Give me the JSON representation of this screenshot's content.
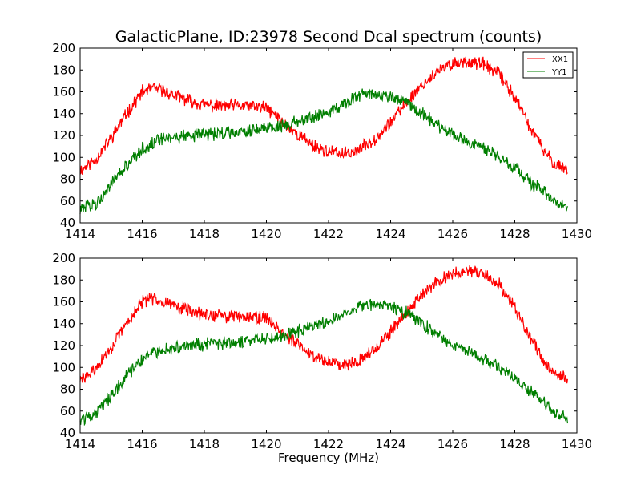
{
  "chart_data": [
    {
      "type": "line",
      "title": "GalacticPlane, ID:23978 Second Dcal spectrum (counts)",
      "xlabel": "",
      "ylabel": "",
      "xlim": [
        1414,
        1430
      ],
      "ylim": [
        40,
        200
      ],
      "xticks": [
        1414,
        1416,
        1418,
        1420,
        1422,
        1424,
        1426,
        1428,
        1430
      ],
      "yticks": [
        40,
        60,
        80,
        100,
        120,
        140,
        160,
        180,
        200
      ],
      "legend_position": "top-right",
      "series": [
        {
          "name": "XX1",
          "color": "#ff0000",
          "x": [
            1414.0,
            1414.5,
            1415.0,
            1415.5,
            1416.0,
            1416.3,
            1416.6,
            1417.0,
            1417.5,
            1418.0,
            1418.5,
            1419.0,
            1419.5,
            1420.0,
            1420.3,
            1420.6,
            1421.0,
            1421.5,
            1422.0,
            1422.5,
            1423.0,
            1423.5,
            1424.0,
            1424.5,
            1425.0,
            1425.5,
            1426.0,
            1426.5,
            1427.0,
            1427.5,
            1428.0,
            1428.5,
            1429.0,
            1429.3,
            1429.7
          ],
          "values": [
            88,
            98,
            118,
            140,
            160,
            163,
            162,
            157,
            152,
            148,
            147,
            147,
            147,
            145,
            138,
            130,
            121,
            111,
            105,
            103,
            107,
            117,
            132,
            150,
            166,
            178,
            186,
            188,
            185,
            176,
            155,
            127,
            103,
            94,
            89
          ]
        },
        {
          "name": "YY1",
          "color": "#007f00",
          "x": [
            1414.0,
            1414.5,
            1415.0,
            1415.5,
            1416.0,
            1416.5,
            1417.0,
            1417.5,
            1418.0,
            1418.5,
            1419.0,
            1419.5,
            1420.0,
            1420.5,
            1421.0,
            1421.5,
            1422.0,
            1422.5,
            1423.0,
            1423.5,
            1424.0,
            1424.5,
            1425.0,
            1425.5,
            1426.0,
            1426.5,
            1427.0,
            1427.5,
            1428.0,
            1428.5,
            1429.0,
            1429.3,
            1429.7
          ],
          "values": [
            52,
            58,
            75,
            92,
            108,
            115,
            118,
            120,
            121,
            122,
            123,
            125,
            127,
            129,
            133,
            137,
            142,
            149,
            156,
            158,
            155,
            150,
            140,
            130,
            121,
            114,
            108,
            100,
            91,
            78,
            66,
            58,
            54
          ]
        }
      ]
    },
    {
      "type": "line",
      "title": "",
      "xlabel": "Frequency (MHz)",
      "ylabel": "",
      "xlim": [
        1414,
        1430
      ],
      "ylim": [
        40,
        200
      ],
      "xticks": [
        1414,
        1416,
        1418,
        1420,
        1422,
        1424,
        1426,
        1428,
        1430
      ],
      "yticks": [
        40,
        60,
        80,
        100,
        120,
        140,
        160,
        180,
        200
      ],
      "series": [
        {
          "color": "#ff0000",
          "x": [
            1414.0,
            1414.5,
            1415.0,
            1415.5,
            1416.0,
            1416.3,
            1416.6,
            1417.0,
            1417.5,
            1418.0,
            1418.5,
            1419.0,
            1419.5,
            1420.0,
            1420.3,
            1420.6,
            1421.0,
            1421.5,
            1422.0,
            1422.5,
            1423.0,
            1423.5,
            1424.0,
            1424.5,
            1425.0,
            1425.5,
            1426.0,
            1426.5,
            1427.0,
            1427.5,
            1428.0,
            1428.5,
            1429.0,
            1429.3,
            1429.7
          ],
          "values": [
            88,
            98,
            118,
            140,
            160,
            163,
            162,
            157,
            152,
            148,
            147,
            147,
            147,
            145,
            138,
            130,
            121,
            111,
            105,
            103,
            107,
            117,
            132,
            150,
            166,
            178,
            186,
            188,
            185,
            176,
            155,
            127,
            103,
            94,
            89
          ]
        },
        {
          "color": "#007f00",
          "x": [
            1414.0,
            1414.5,
            1415.0,
            1415.5,
            1416.0,
            1416.5,
            1417.0,
            1417.5,
            1418.0,
            1418.5,
            1419.0,
            1419.5,
            1420.0,
            1420.5,
            1421.0,
            1421.5,
            1422.0,
            1422.5,
            1423.0,
            1423.5,
            1424.0,
            1424.5,
            1425.0,
            1425.5,
            1426.0,
            1426.5,
            1427.0,
            1427.5,
            1428.0,
            1428.5,
            1429.0,
            1429.3,
            1429.7
          ],
          "values": [
            52,
            58,
            75,
            92,
            108,
            115,
            118,
            120,
            121,
            122,
            123,
            125,
            127,
            129,
            133,
            137,
            142,
            149,
            156,
            158,
            155,
            150,
            140,
            130,
            121,
            114,
            108,
            100,
            91,
            78,
            66,
            58,
            54
          ]
        }
      ]
    }
  ]
}
